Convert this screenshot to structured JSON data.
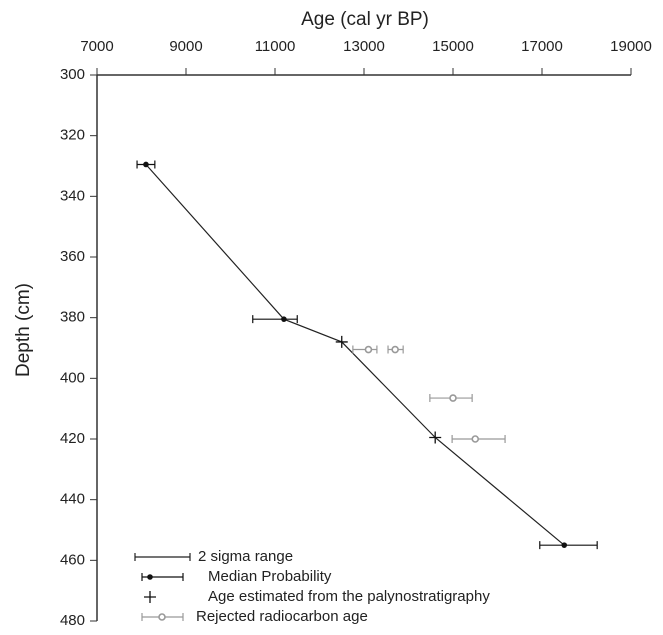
{
  "chart_data": {
    "type": "scatter",
    "xlabel": "Age (cal yr BP)",
    "ylabel": "Depth (cm)",
    "xlim": [
      7000,
      19000
    ],
    "xticks": [
      7000,
      9000,
      11000,
      13000,
      15000,
      17000,
      19000
    ],
    "ylim": [
      300,
      480
    ],
    "yticks": [
      300,
      320,
      340,
      360,
      380,
      400,
      420,
      440,
      460,
      480
    ],
    "y_inverted": true,
    "error_label": "2 sigma range",
    "line": {
      "color": "#222222",
      "x": [
        8100,
        11200,
        12500,
        14600,
        17500
      ],
      "values": [
        329.5,
        380.5,
        388,
        419.5,
        455
      ]
    },
    "series": [
      {
        "name": "Median Probability",
        "marker": "dot",
        "color": "#111111",
        "x": [
          8100,
          11200,
          17500
        ],
        "values": [
          329.5,
          380.5,
          455
        ],
        "xerr_low": [
          7900,
          10500,
          16950
        ],
        "xerr_high": [
          8300,
          11500,
          18240
        ]
      },
      {
        "name": "Age estimated from the palynostratigraphy",
        "marker": "plus",
        "color": "#111111",
        "x": [
          12500,
          14600
        ],
        "values": [
          388,
          419.5
        ]
      },
      {
        "name": "Rejected radiocarbon age",
        "marker": "circle",
        "color": "#999999",
        "x": [
          13100,
          13700,
          15000,
          15500
        ],
        "values": [
          390.5,
          390.5,
          406.5,
          420
        ],
        "xerr_low": [
          12750,
          13540,
          14480,
          14980
        ],
        "xerr_high": [
          13290,
          13880,
          15430,
          16170
        ]
      }
    ]
  }
}
